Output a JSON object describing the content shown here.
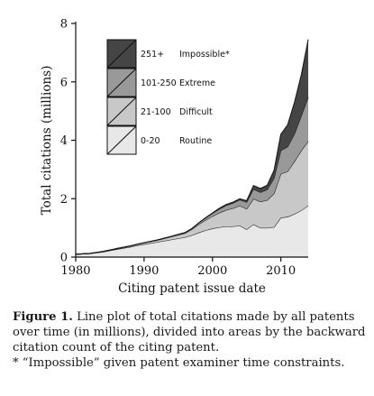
{
  "chart_data": {
    "type": "area",
    "stacked": true,
    "xlabel": "Citing patent issue date",
    "ylabel": "Total citations (millions)",
    "xlim": [
      1980,
      2014
    ],
    "ylim": [
      0,
      8
    ],
    "x_ticks": [
      "1980",
      "1990",
      "2000",
      "2010"
    ],
    "y_ticks": [
      "0",
      "2",
      "4",
      "6",
      "8"
    ],
    "legend_position": "top-left",
    "x": [
      1980,
      1982,
      1984,
      1986,
      1988,
      1989,
      1990,
      1992,
      1994,
      1996,
      1997,
      1998,
      1999,
      2000,
      2001,
      2002,
      2003,
      2004,
      2005,
      2006,
      2007,
      2008,
      2009,
      2010,
      2011,
      2012,
      2013,
      2014
    ],
    "series": [
      {
        "range": "0-20",
        "label": "Routine",
        "color": "#e8e8e8",
        "values": [
          0.1,
          0.12,
          0.18,
          0.27,
          0.35,
          0.4,
          0.44,
          0.52,
          0.6,
          0.68,
          0.75,
          0.84,
          0.92,
          0.98,
          1.02,
          1.05,
          1.05,
          1.08,
          0.95,
          1.12,
          1.0,
          1.0,
          1.03,
          1.35,
          1.38,
          1.48,
          1.6,
          1.77
        ]
      },
      {
        "range": "21-100",
        "label": "Difficult",
        "color": "#c8c8c8",
        "values": [
          0.0,
          0.0,
          0.01,
          0.02,
          0.03,
          0.04,
          0.05,
          0.06,
          0.1,
          0.14,
          0.2,
          0.28,
          0.35,
          0.42,
          0.5,
          0.56,
          0.62,
          0.68,
          0.7,
          0.88,
          0.9,
          0.95,
          1.15,
          1.5,
          1.55,
          1.8,
          2.05,
          2.2
        ]
      },
      {
        "range": "101-250",
        "label": "Extreme",
        "color": "#999999",
        "values": [
          0.0,
          0.0,
          0.0,
          0.0,
          0.0,
          0.0,
          0.0,
          0.01,
          0.01,
          0.02,
          0.03,
          0.05,
          0.07,
          0.1,
          0.13,
          0.16,
          0.18,
          0.2,
          0.23,
          0.33,
          0.32,
          0.36,
          0.52,
          0.8,
          0.85,
          0.95,
          1.2,
          1.5
        ]
      },
      {
        "range": "251+",
        "label": "Impossible*",
        "color": "#454545",
        "values": [
          0.0,
          0.0,
          0.0,
          0.0,
          0.0,
          0.0,
          0.0,
          0.0,
          0.0,
          0.0,
          0.0,
          0.0,
          0.01,
          0.01,
          0.02,
          0.03,
          0.03,
          0.04,
          0.05,
          0.12,
          0.13,
          0.15,
          0.27,
          0.55,
          0.75,
          1.07,
          1.4,
          1.98
        ]
      }
    ]
  },
  "caption": {
    "fig_label": "Figure 1.",
    "text": " Line plot of total citations made by all patents over time (in millions), divided into areas by the backward citation count of the citing patent.",
    "footnote": "* “Impossible” given patent examiner time constraints."
  }
}
